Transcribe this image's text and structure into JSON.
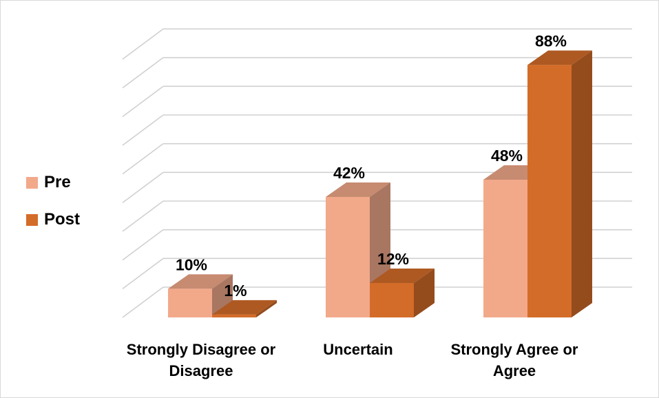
{
  "chart_data": {
    "type": "bar",
    "style": "3d-clustered-column",
    "categories": [
      "Strongly Disagree or Disagree",
      "Uncertain",
      "Strongly Agree or Agree"
    ],
    "series": [
      {
        "name": "Pre",
        "values": [
          10,
          42,
          48
        ],
        "color": "#F2A98A"
      },
      {
        "name": "Post",
        "values": [
          1,
          12,
          88
        ],
        "color": "#D46C29"
      }
    ],
    "data_labels": [
      [
        "10%",
        "42%",
        "48%"
      ],
      [
        "1%",
        "12%",
        "88%"
      ]
    ],
    "ylim": [
      0,
      90
    ],
    "grid": true,
    "legend_position": "left",
    "title": "",
    "xlabel": "",
    "ylabel": ""
  },
  "legend": {
    "items": [
      {
        "label": "Pre",
        "color": "#F2A98A"
      },
      {
        "label": "Post",
        "color": "#D46C29"
      }
    ]
  }
}
